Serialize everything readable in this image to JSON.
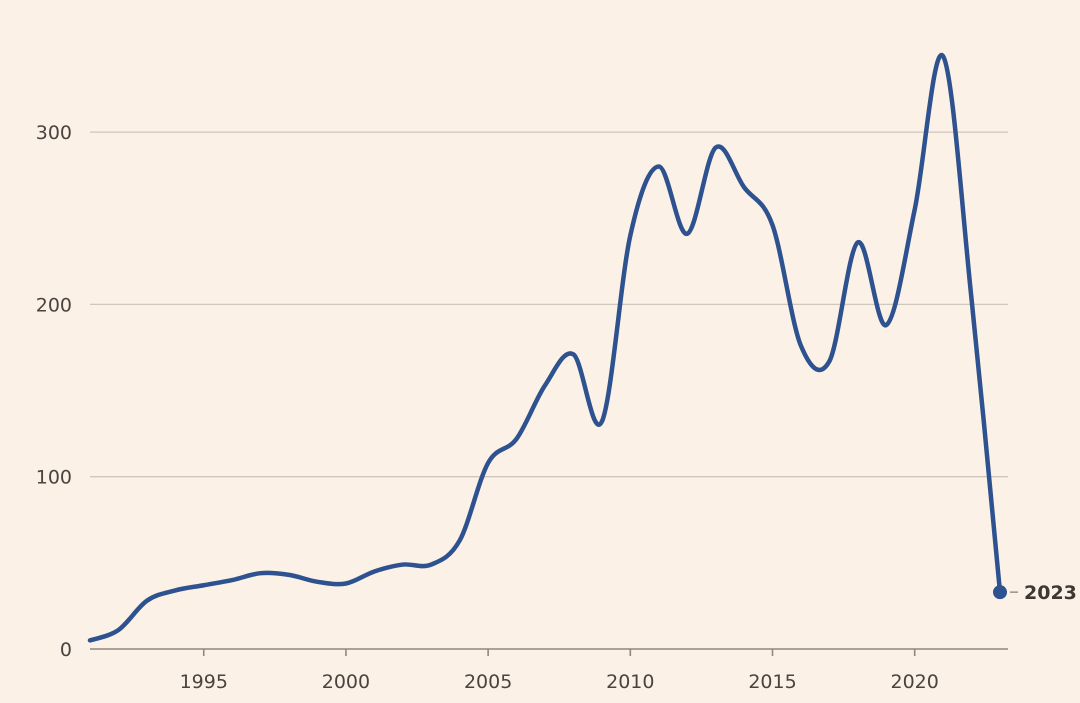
{
  "chart_data": {
    "type": "line",
    "title": "",
    "xlabel": "",
    "ylabel": "",
    "xlim": [
      1991,
      2023
    ],
    "ylim": [
      0,
      350
    ],
    "x_ticks": [
      1995,
      2000,
      2005,
      2010,
      2015,
      2020
    ],
    "y_ticks": [
      0,
      100,
      200,
      300
    ],
    "grid": "horizontal",
    "line_color": "#2d528f",
    "background": "#fcf1e6",
    "end_label": "2023",
    "x": [
      1991,
      1992,
      1993,
      1994,
      1995,
      1996,
      1997,
      1998,
      1999,
      2000,
      2001,
      2002,
      2003,
      2004,
      2005,
      2006,
      2007,
      2008,
      2009,
      2010,
      2011,
      2012,
      2013,
      2014,
      2015,
      2016,
      2017,
      2018,
      2019,
      2020,
      2021,
      2022,
      2023
    ],
    "series": [
      {
        "values": [
          5,
          11,
          28,
          34,
          37,
          40,
          44,
          43,
          39,
          38,
          45,
          49,
          49,
          63,
          108,
          122,
          153,
          171,
          132,
          240,
          280,
          241,
          291,
          268,
          246,
          176,
          167,
          236,
          188,
          255,
          344,
          203,
          33
        ]
      }
    ]
  }
}
